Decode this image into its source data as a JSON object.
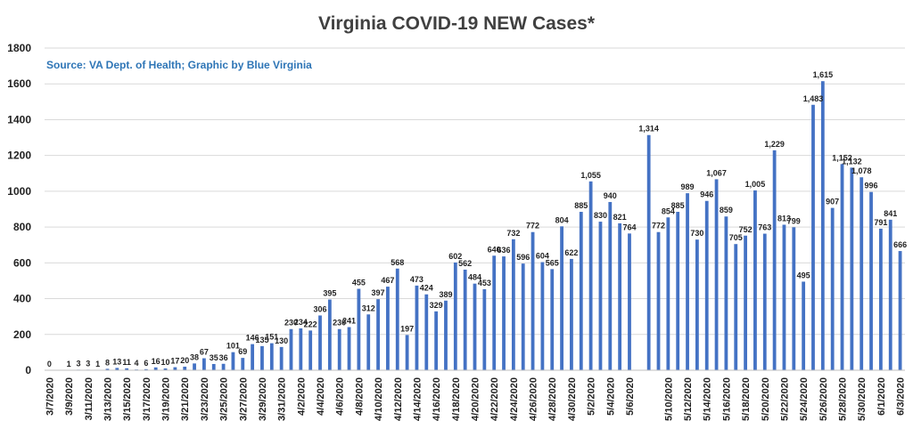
{
  "chart_data": {
    "type": "bar",
    "title": "Virginia COVID-19 NEW Cases*",
    "subtitle": "Source: VA Dept. of Health; Graphic by Blue Virginia",
    "ylim": [
      0,
      1800
    ],
    "yticks": [
      0,
      200,
      400,
      600,
      800,
      1000,
      1200,
      1400,
      1600,
      1800
    ],
    "grid": true,
    "legend": "none",
    "color": "#4472C4",
    "categories": [
      "3/7/2020",
      "3/8/2020",
      "3/9/2020",
      "3/10/2020",
      "3/11/2020",
      "3/12/2020",
      "3/13/2020",
      "3/14/2020",
      "3/15/2020",
      "3/16/2020",
      "3/17/2020",
      "3/18/2020",
      "3/19/2020",
      "3/20/2020",
      "3/21/2020",
      "3/22/2020",
      "3/23/2020",
      "3/24/2020",
      "3/25/2020",
      "3/26/2020",
      "3/27/2020",
      "3/28/2020",
      "3/29/2020",
      "3/30/2020",
      "3/31/2020",
      "4/1/2020",
      "4/2/2020",
      "4/3/2020",
      "4/4/2020",
      "4/5/2020",
      "4/6/2020",
      "4/7/2020",
      "4/8/2020",
      "4/9/2020",
      "4/10/2020",
      "4/11/2020",
      "4/12/2020",
      "4/13/2020",
      "4/14/2020",
      "4/15/2020",
      "4/16/2020",
      "4/17/2020",
      "4/18/2020",
      "4/19/2020",
      "4/20/2020",
      "4/21/2020",
      "4/22/2020",
      "4/23/2020",
      "4/24/2020",
      "4/25/2020",
      "4/26/2020",
      "4/27/2020",
      "4/28/2020",
      "4/29/2020",
      "4/30/2020",
      "5/1/2020",
      "5/2/2020",
      "5/3/2020",
      "5/4/2020",
      "5/5/2020",
      "5/6/2020",
      "5/7/2020",
      "5/8/2020",
      "5/9/2020",
      "5/10/2020",
      "5/11/2020",
      "5/12/2020",
      "5/13/2020",
      "5/14/2020",
      "5/15/2020",
      "5/16/2020",
      "5/17/2020",
      "5/18/2020",
      "5/19/2020",
      "5/20/2020",
      "5/21/2020",
      "5/22/2020",
      "5/23/2020",
      "5/24/2020",
      "5/25/2020",
      "5/26/2020",
      "5/27/2020",
      "5/28/2020",
      "5/29/2020",
      "5/30/2020",
      "5/31/2020",
      "6/1/2020",
      "6/2/2020",
      "6/3/2020"
    ],
    "values": [
      0,
      null,
      1,
      3,
      3,
      1,
      8,
      13,
      11,
      4,
      6,
      16,
      10,
      17,
      20,
      38,
      67,
      35,
      36,
      101,
      69,
      146,
      135,
      151,
      130,
      230,
      234,
      222,
      306,
      395,
      230,
      241,
      455,
      312,
      397,
      467,
      568,
      197,
      473,
      424,
      329,
      389,
      602,
      562,
      484,
      453,
      640,
      636,
      732,
      596,
      772,
      604,
      565,
      804,
      622,
      885,
      1055,
      830,
      940,
      821,
      764,
      null,
      1314,
      772,
      854,
      885,
      989,
      730,
      946,
      1067,
      859,
      705,
      752,
      1005,
      763,
      1229,
      813,
      799,
      495,
      1483,
      1615,
      907,
      1152,
      1132,
      1078,
      996,
      791,
      841,
      666
    ],
    "value_labels": [
      "0",
      "",
      "1",
      "3",
      "3",
      "1",
      "8",
      "13",
      "11",
      "4",
      "6",
      "16",
      "10",
      "17",
      "20",
      "38",
      "67",
      "35",
      "36",
      "101",
      "69",
      "146",
      "135",
      "151",
      "130",
      "230",
      "234",
      "222",
      "306",
      "395",
      "230",
      "241",
      "455",
      "312",
      "397",
      "467",
      "568",
      "197",
      "473",
      "424",
      "329",
      "389",
      "602",
      "562",
      "484",
      "453",
      "640",
      "636",
      "732",
      "596",
      "772",
      "604",
      "565",
      "804",
      "622",
      "885",
      "1,055",
      "830",
      "940",
      "821",
      "764",
      "",
      "1,314",
      "772",
      "854",
      "885",
      "989",
      "730",
      "946",
      "1,067",
      "859",
      "705",
      "752",
      "1,005",
      "763",
      "1,229",
      "813",
      "799",
      "495",
      "1,483",
      "1,615",
      "907",
      "1,152",
      "1,132",
      "1,078",
      "996",
      "791",
      "841",
      "666"
    ],
    "xtick_labels": [
      "3/7/2020",
      "3/9/2020",
      "3/11/2020",
      "3/13/2020",
      "3/15/2020",
      "3/17/2020",
      "3/19/2020",
      "3/21/2020",
      "3/23/2020",
      "3/25/2020",
      "3/27/2020",
      "3/29/2020",
      "3/31/2020",
      "4/2/2020",
      "4/4/2020",
      "4/6/2020",
      "4/8/2020",
      "4/10/2020",
      "4/12/2020",
      "4/14/2020",
      "4/16/2020",
      "4/18/2020",
      "4/20/2020",
      "4/22/2020",
      "4/24/2020",
      "4/26/2020",
      "4/28/2020",
      "4/30/2020",
      "5/2/2020",
      "5/4/2020",
      "5/6/2020",
      "5/10/2020",
      "5/12/2020",
      "5/14/2020",
      "5/16/2020",
      "5/18/2020",
      "5/20/2020",
      "5/22/2020",
      "5/24/2020",
      "5/26/2020",
      "5/28/2020",
      "5/30/2020",
      "6/1/2020",
      "6/3/2020"
    ]
  }
}
